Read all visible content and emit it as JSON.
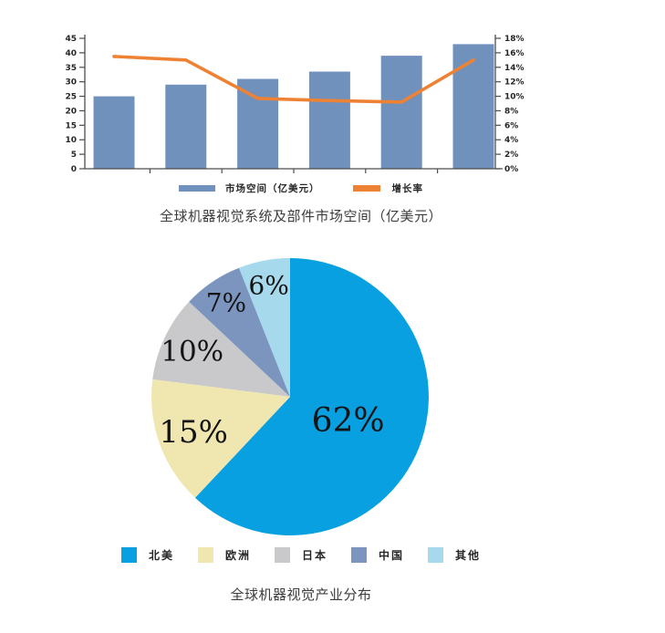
{
  "chart_data": [
    {
      "type": "bar+line",
      "title": "全球机器视觉系统及部件市场空间（亿美元）",
      "categories": [
        "",
        "",
        "",
        "",
        "",
        ""
      ],
      "series": [
        {
          "name": "市场空间（亿美元）",
          "type": "bar",
          "axis": "left",
          "color": "#7191BD",
          "values": [
            25,
            29,
            31,
            33.5,
            39,
            43
          ]
        },
        {
          "name": "增长率",
          "type": "line",
          "axis": "right",
          "color": "#EE8234",
          "values": [
            15.5,
            15.0,
            9.7,
            9.4,
            9.2,
            15.0
          ],
          "unit": "%"
        }
      ],
      "left_axis": {
        "min": 0,
        "max": 45,
        "step": 5,
        "ticks": [
          "0",
          "5",
          "10",
          "15",
          "20",
          "25",
          "30",
          "35",
          "40",
          "45"
        ]
      },
      "right_axis": {
        "min": 0,
        "max": 18,
        "step": 2,
        "ticks": [
          "0%",
          "2%",
          "4%",
          "6%",
          "8%",
          "10%",
          "12%",
          "14%",
          "16%",
          "18%"
        ]
      },
      "grid": false,
      "legend_position": "bottom",
      "axis_color": "#4d4d4d"
    },
    {
      "type": "pie",
      "title": "全球机器视觉产业分布",
      "labels": [
        "北美",
        "欧洲",
        "日本",
        "中国",
        "其他"
      ],
      "values": [
        62,
        15,
        10,
        7,
        6
      ],
      "value_labels": [
        "62%",
        "15%",
        "10%",
        "7%",
        "6%"
      ],
      "colors": [
        "#09A0E1",
        "#F0E7B0",
        "#C9C9CB",
        "#7C95BE",
        "#A7D9EC"
      ],
      "start_angle_deg": 0,
      "direction": "clockwise",
      "legend_position": "bottom"
    }
  ]
}
